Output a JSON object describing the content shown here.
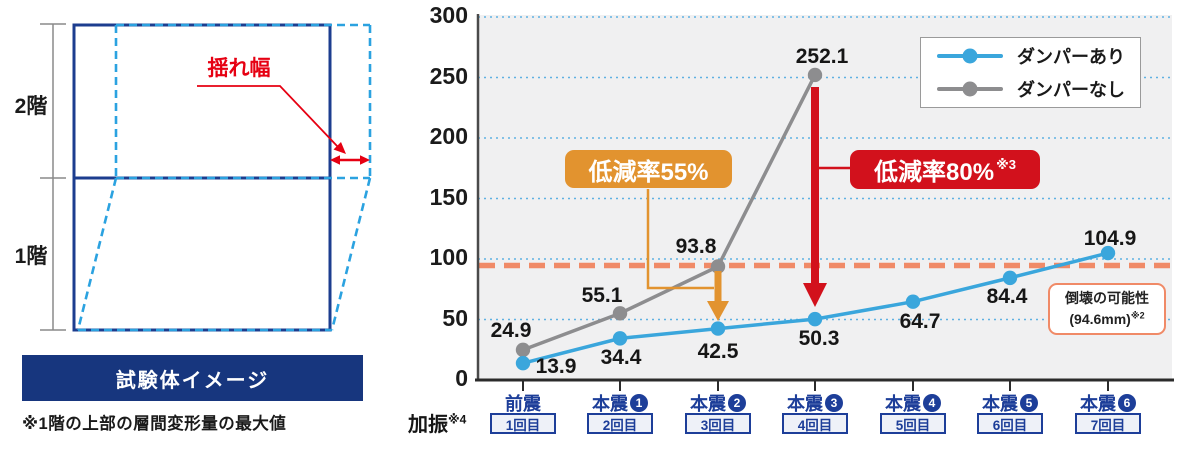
{
  "diagram": {
    "floor2_label": "2階",
    "floor1_label": "1階",
    "sway_label": "揺れ幅",
    "caption": "試験体イメージ",
    "note": "※1階の上部の層間変形量の最大値",
    "solid_color": "#1c3d8f",
    "dashed_color": "#2ba2e0",
    "accent_red": "#e60012",
    "banner_bg": "#17367e"
  },
  "chart_data": {
    "type": "line",
    "categories": [
      {
        "main": "前震",
        "num": "",
        "sub": "1回目"
      },
      {
        "main": "本震",
        "num": "1",
        "sub": "2回目"
      },
      {
        "main": "本震",
        "num": "2",
        "sub": "3回目"
      },
      {
        "main": "本震",
        "num": "3",
        "sub": "4回目"
      },
      {
        "main": "本震",
        "num": "4",
        "sub": "5回目"
      },
      {
        "main": "本震",
        "num": "5",
        "sub": "6回目"
      },
      {
        "main": "本震",
        "num": "6",
        "sub": "7回目"
      }
    ],
    "xaxis_label": "加振",
    "xaxis_label_sup": "※4",
    "ylabel": "",
    "ylim": [
      0,
      300
    ],
    "yticks": [
      0,
      50,
      100,
      150,
      200,
      250,
      300
    ],
    "grid": "horizontal-dotted",
    "legend_position": "top-right",
    "series": [
      {
        "name": "ダンパーあり",
        "color": "#3aa6dc",
        "values": [
          13.9,
          34.4,
          42.5,
          50.3,
          64.7,
          84.4,
          104.9
        ]
      },
      {
        "name": "ダンパーなし",
        "color": "#8d8d8f",
        "values": [
          24.9,
          55.1,
          93.8,
          252.1
        ]
      }
    ],
    "threshold": {
      "value": 94.6,
      "color": "#f08a67",
      "label_line1": "倒壊の可能性",
      "label_line2": "(94.6mm)",
      "label_sup": "※2"
    },
    "annotations": [
      {
        "text": "低減率55%",
        "sup": "",
        "color": "#e2932f",
        "at_category": "本震2"
      },
      {
        "text": "低減率80%",
        "sup": "※3",
        "color": "#d2111c",
        "at_category": "本震3"
      }
    ]
  }
}
